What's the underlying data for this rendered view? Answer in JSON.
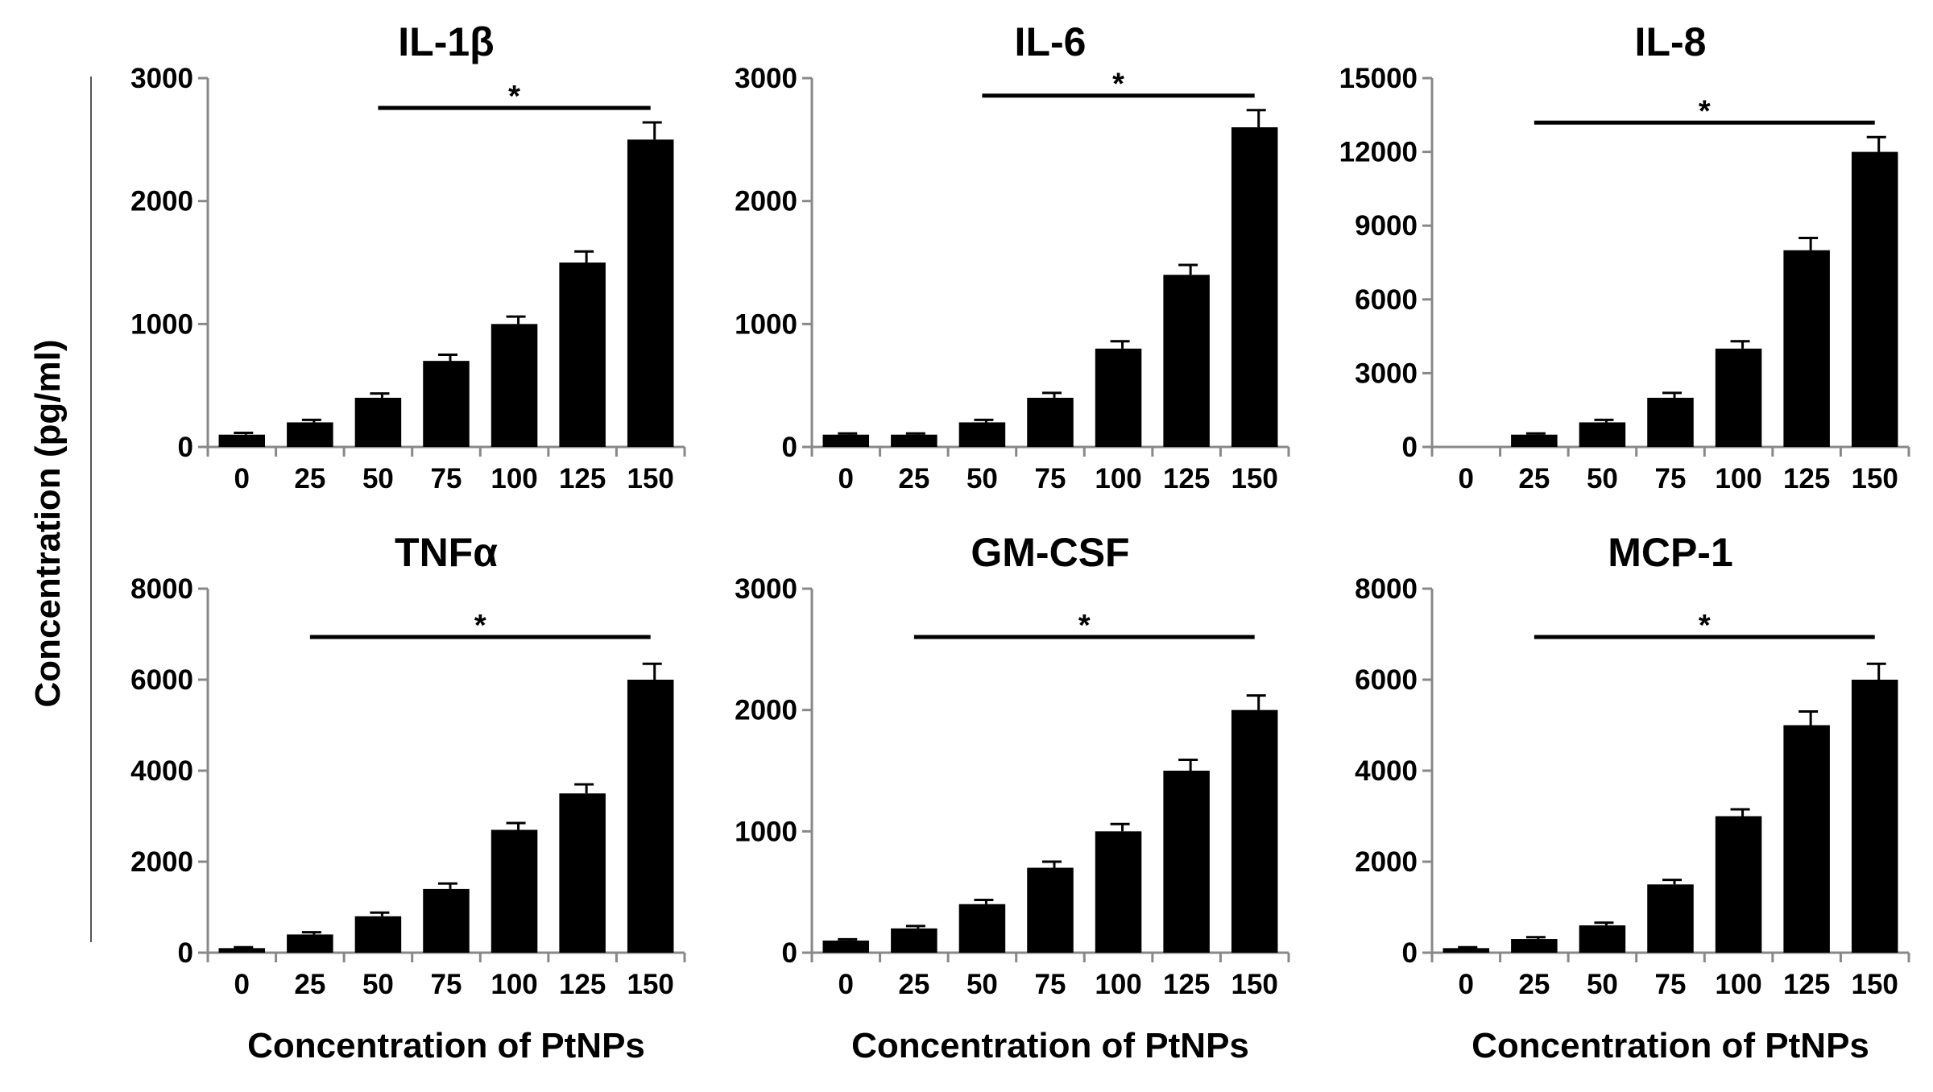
{
  "figure": {
    "y_axis_label": "Concentration (pg/ml)",
    "x_axis_label": "Concentration of PtNPs",
    "significance_marker": "*",
    "bar_color": "#000000"
  },
  "chart_data": [
    {
      "type": "bar",
      "title": "IL-1β",
      "categories": [
        "0",
        "25",
        "50",
        "75",
        "100",
        "125",
        "150"
      ],
      "values": [
        100,
        200,
        400,
        700,
        1000,
        1500,
        2500
      ],
      "errors": [
        15,
        20,
        35,
        50,
        60,
        90,
        140
      ],
      "ylim": [
        0,
        3000
      ],
      "yticks": [
        "0",
        "1000",
        "2000",
        "3000"
      ],
      "xlabel": "",
      "ylabel": "Concentration (pg/ml)",
      "significance": {
        "from": "50",
        "to": "150",
        "label": "*"
      }
    },
    {
      "type": "bar",
      "title": "IL-6",
      "categories": [
        "0",
        "25",
        "50",
        "75",
        "100",
        "125",
        "150"
      ],
      "values": [
        100,
        100,
        200,
        400,
        800,
        1400,
        2600
      ],
      "errors": [
        10,
        10,
        20,
        40,
        60,
        80,
        140
      ],
      "ylim": [
        0,
        3000
      ],
      "yticks": [
        "0",
        "1000",
        "2000",
        "3000"
      ],
      "xlabel": "",
      "ylabel": "Concentration (pg/ml)",
      "significance": {
        "from": "50",
        "to": "150",
        "label": "*"
      }
    },
    {
      "type": "bar",
      "title": "IL-8",
      "categories": [
        "0",
        "25",
        "50",
        "75",
        "100",
        "125",
        "150"
      ],
      "values": [
        0,
        500,
        1000,
        2000,
        4000,
        8000,
        12000
      ],
      "errors": [
        0,
        50,
        100,
        200,
        300,
        500,
        600
      ],
      "ylim": [
        0,
        15000
      ],
      "yticks": [
        "0",
        "3000",
        "6000",
        "9000",
        "12000",
        "15000"
      ],
      "xlabel": "",
      "ylabel": "Concentration (pg/ml)",
      "significance": {
        "from": "25",
        "to": "150",
        "label": "*"
      }
    },
    {
      "type": "bar",
      "title": "TNFα",
      "categories": [
        "0",
        "25",
        "50",
        "75",
        "100",
        "125",
        "150"
      ],
      "values": [
        100,
        400,
        800,
        1400,
        2700,
        3500,
        6000
      ],
      "errors": [
        20,
        50,
        80,
        120,
        150,
        200,
        350
      ],
      "ylim": [
        0,
        8000
      ],
      "yticks": [
        "0",
        "2000",
        "4000",
        "6000",
        "8000"
      ],
      "xlabel": "Concentration of PtNPs",
      "ylabel": "Concentration (pg/ml)",
      "significance": {
        "from": "25",
        "to": "150",
        "label": "*"
      }
    },
    {
      "type": "bar",
      "title": "GM-CSF",
      "categories": [
        "0",
        "25",
        "50",
        "75",
        "100",
        "125",
        "150"
      ],
      "values": [
        100,
        200,
        400,
        700,
        1000,
        1500,
        2000
      ],
      "errors": [
        10,
        20,
        35,
        50,
        60,
        90,
        120
      ],
      "ylim": [
        0,
        3000
      ],
      "yticks": [
        "0",
        "1000",
        "2000",
        "3000"
      ],
      "xlabel": "Concentration of PtNPs",
      "ylabel": "Concentration (pg/ml)",
      "significance": {
        "from": "25",
        "to": "150",
        "label": "*"
      }
    },
    {
      "type": "bar",
      "title": "MCP-1",
      "categories": [
        "0",
        "25",
        "50",
        "75",
        "100",
        "125",
        "150"
      ],
      "values": [
        100,
        300,
        600,
        1500,
        3000,
        5000,
        6000
      ],
      "errors": [
        20,
        40,
        60,
        100,
        150,
        300,
        350
      ],
      "ylim": [
        0,
        8000
      ],
      "yticks": [
        "0",
        "2000",
        "4000",
        "6000",
        "8000"
      ],
      "xlabel": "Concentration of PtNPs",
      "ylabel": "Concentration (pg/ml)",
      "significance": {
        "from": "25",
        "to": "150",
        "label": "*"
      }
    }
  ]
}
